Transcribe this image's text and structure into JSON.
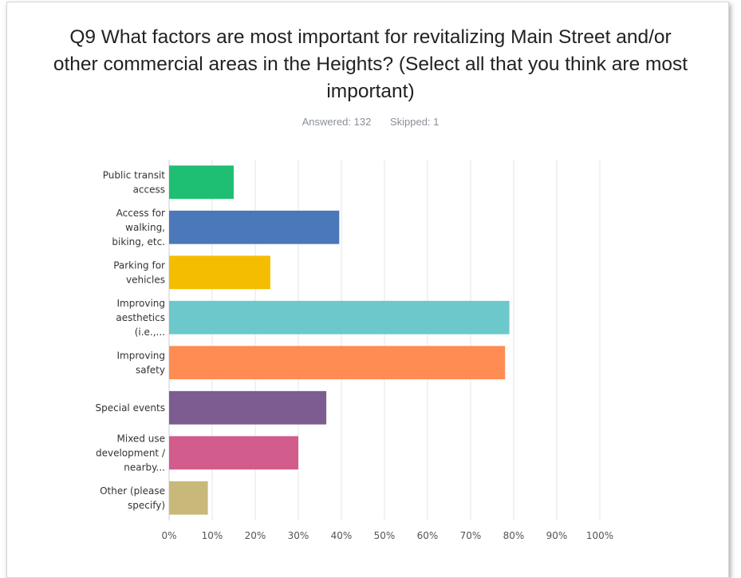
{
  "title_lines": [
    "Q9 What factors are most important for revitalizing Main Street and/or",
    "other commercial areas in the Heights? (Select all that you think are most",
    "important)"
  ],
  "answered": "Answered: 132",
  "skipped": "Skipped: 1",
  "chart_data": {
    "type": "bar",
    "orientation": "horizontal",
    "categories": [
      [
        "Public transit",
        "access"
      ],
      [
        "Access for",
        "walking,",
        "biking, etc."
      ],
      [
        "Parking for",
        "vehicles"
      ],
      [
        "Improving",
        "aesthetics",
        "(i.e.,..."
      ],
      [
        "Improving",
        "safety"
      ],
      [
        "Special events"
      ],
      [
        "Mixed use",
        "development /",
        "nearby..."
      ],
      [
        "Other (please",
        "specify)"
      ]
    ],
    "values": [
      15,
      39.5,
      23.5,
      79,
      78,
      36.5,
      30,
      9
    ],
    "colors": [
      "#1fbf73",
      "#4a78b8",
      "#f5bd00",
      "#6cc8cb",
      "#ff8c52",
      "#7c5c91",
      "#d25c8c",
      "#c8b87a"
    ],
    "xlim": [
      0,
      100
    ],
    "ticks": [
      "0%",
      "10%",
      "20%",
      "30%",
      "40%",
      "50%",
      "60%",
      "70%",
      "80%",
      "90%",
      "100%"
    ],
    "grid": true
  }
}
